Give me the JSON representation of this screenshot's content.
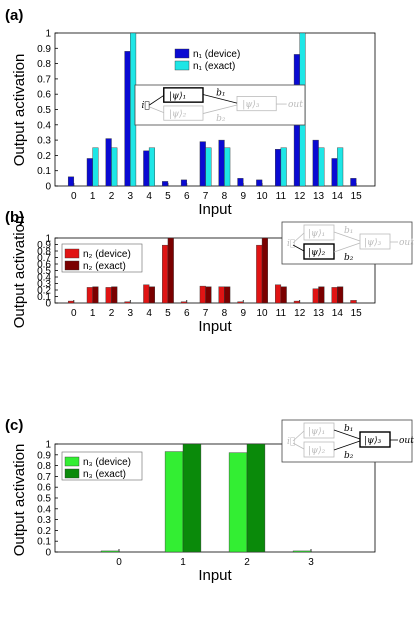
{
  "chart_data": [
    {
      "type": "bar",
      "panel_label": "(a)",
      "xlabel": "Input",
      "ylabel": "Output activation",
      "categories": [
        "0",
        "1",
        "2",
        "3",
        "4",
        "5",
        "6",
        "7",
        "8",
        "9",
        "10",
        "11",
        "12",
        "13",
        "14",
        "15"
      ],
      "ylim": [
        0,
        1
      ],
      "yticks": [
        "0",
        "0.1",
        "0.2",
        "0.3",
        "0.4",
        "0.5",
        "0.6",
        "0.7",
        "0.8",
        "0.9",
        "1"
      ],
      "legend_position": "top-center",
      "series": [
        {
          "name": "n₁ (device)",
          "color": "#0a0ad2",
          "values": [
            0.06,
            0.18,
            0.31,
            0.88,
            0.23,
            0.03,
            0.04,
            0.29,
            0.3,
            0.05,
            0.04,
            0.24,
            0.86,
            0.3,
            0.18,
            0.05
          ]
        },
        {
          "name": "n₁ (exact)",
          "color": "#1ee6e6",
          "values": [
            null,
            0.25,
            0.25,
            1.0,
            0.25,
            null,
            null,
            0.25,
            0.25,
            null,
            null,
            0.25,
            1.0,
            0.25,
            0.25,
            null
          ]
        }
      ],
      "diagram": {
        "input": "i⃗",
        "nodes": [
          "|ψ⟩₁",
          "|ψ⟩₂",
          "|ψ⟩₃"
        ],
        "weights": [
          "b₁",
          "b₂"
        ],
        "output": "out",
        "active": 1
      }
    },
    {
      "type": "bar",
      "panel_label": "(b)",
      "xlabel": "Input",
      "ylabel": "Output activation",
      "categories": [
        "0",
        "1",
        "2",
        "3",
        "4",
        "5",
        "6",
        "7",
        "8",
        "9",
        "10",
        "11",
        "12",
        "13",
        "14",
        "15"
      ],
      "ylim": [
        0,
        1
      ],
      "yticks": [
        "0",
        "0.1",
        "0.2",
        "0.3",
        "0.4",
        "0.5",
        "0.6",
        "0.7",
        "0.8",
        "0.9",
        "1"
      ],
      "legend_position": "top-left",
      "series": [
        {
          "name": "n₂ (device)",
          "color": "#e11414",
          "values": [
            0.03,
            0.24,
            0.24,
            0.02,
            0.28,
            0.89,
            0.02,
            0.26,
            0.25,
            0.02,
            0.89,
            0.28,
            0.03,
            0.22,
            0.24,
            0.04
          ]
        },
        {
          "name": "n₂ (exact)",
          "color": "#7a0000",
          "values": [
            null,
            0.25,
            0.25,
            null,
            0.25,
            1.0,
            null,
            0.25,
            0.25,
            null,
            1.0,
            0.25,
            null,
            0.25,
            0.25,
            null
          ]
        }
      ],
      "diagram": {
        "input": "i⃗",
        "nodes": [
          "|ψ⟩₁",
          "|ψ⟩₂",
          "|ψ⟩₃"
        ],
        "weights": [
          "b₁",
          "b₂"
        ],
        "output": "out",
        "active": 2
      }
    },
    {
      "type": "bar",
      "panel_label": "(c)",
      "xlabel": "Input",
      "ylabel": "Output activation",
      "categories": [
        "0",
        "1",
        "2",
        "3"
      ],
      "ylim": [
        0,
        1
      ],
      "yticks": [
        "0",
        "0.1",
        "0.2",
        "0.3",
        "0.4",
        "0.5",
        "0.6",
        "0.7",
        "0.8",
        "0.9",
        "1"
      ],
      "legend_position": "top-left",
      "series": [
        {
          "name": "n₃ (device)",
          "color": "#33ee33",
          "values": [
            0.01,
            0.93,
            0.92,
            0.01
          ]
        },
        {
          "name": "n₃ (exact)",
          "color": "#0a8a0a",
          "values": [
            null,
            1.0,
            1.0,
            null
          ]
        }
      ],
      "diagram": {
        "input": "i⃗",
        "nodes": [
          "|ψ⟩₁",
          "|ψ⟩₂",
          "|ψ⟩₃"
        ],
        "weights": [
          "b₁",
          "b₂"
        ],
        "output": "out",
        "active": 3
      }
    }
  ]
}
